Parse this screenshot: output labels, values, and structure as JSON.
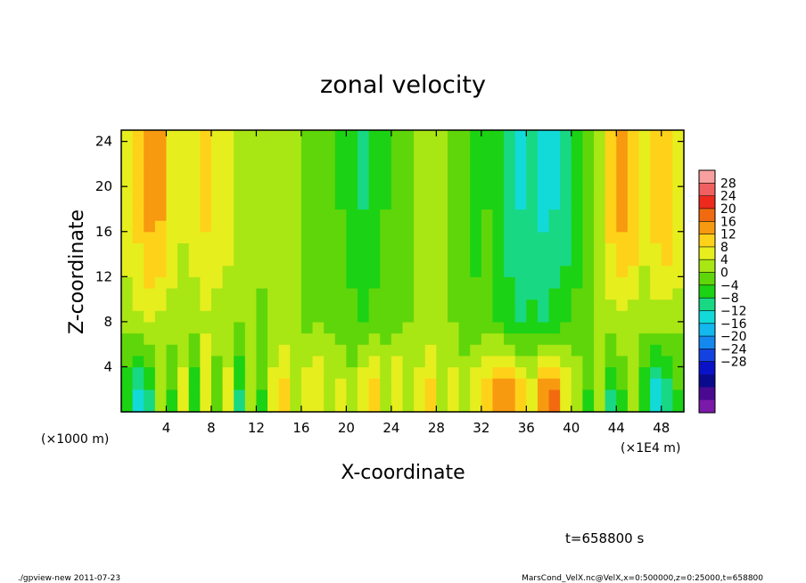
{
  "chart_data": {
    "type": "heatmap",
    "title": "zonal velocity",
    "xlabel": "X-coordinate",
    "ylabel": "Z-coordinate",
    "x_unit_label": "(×1E4 m)",
    "y_unit_label": "(×1000 m)",
    "x_range": [
      0,
      50
    ],
    "y_range": [
      0,
      25
    ],
    "x_ticks": [
      4,
      8,
      12,
      16,
      20,
      24,
      28,
      32,
      36,
      40,
      44,
      48
    ],
    "y_ticks": [
      4,
      8,
      12,
      16,
      20,
      24
    ],
    "colorbar": {
      "labels": [
        "28",
        "24",
        "20",
        "16",
        "12",
        "8",
        "4",
        "0",
        "−4",
        "−8",
        "−12",
        "−16",
        "−20",
        "−24",
        "−28"
      ],
      "colors": [
        "#f8a0a0",
        "#f06060",
        "#ee2a1c",
        "#f26a10",
        "#f79a10",
        "#ffd21a",
        "#e6ee1e",
        "#a8e614",
        "#5fd60a",
        "#1cd214",
        "#18d884",
        "#12dad8",
        "#12b8ee",
        "#1488ee",
        "#1442e0",
        "#0a12c8",
        "#0a0a8c",
        "#4a0a90",
        "#7a1aa8"
      ]
    },
    "columns": [
      {
        "x": 0.5,
        "top": 6,
        "mid": 2,
        "bot": -6
      },
      {
        "x": 1.5,
        "top": 10,
        "mid": 3,
        "bot": -12
      },
      {
        "x": 2.5,
        "top": 14,
        "mid": 4,
        "bot": -8
      },
      {
        "x": 3.5,
        "top": 13,
        "mid": 3,
        "bot": 2
      },
      {
        "x": 4.5,
        "top": 8,
        "mid": 2,
        "bot": -4
      },
      {
        "x": 5.5,
        "top": 5,
        "mid": 1,
        "bot": 6
      },
      {
        "x": 6.5,
        "top": 6,
        "mid": 2,
        "bot": -6
      },
      {
        "x": 7.5,
        "top": 9,
        "mid": 3,
        "bot": 8
      },
      {
        "x": 8.5,
        "top": 8,
        "mid": 2,
        "bot": -2
      },
      {
        "x": 9.5,
        "top": 6,
        "mid": 1,
        "bot": 6
      },
      {
        "x": 10.5,
        "top": 4,
        "mid": 0,
        "bot": -8
      },
      {
        "x": 11.5,
        "top": 3,
        "mid": 0,
        "bot": 4
      },
      {
        "x": 12.5,
        "top": 2,
        "mid": -1,
        "bot": -4
      },
      {
        "x": 13.5,
        "top": 1,
        "mid": 0,
        "bot": 6
      },
      {
        "x": 14.5,
        "top": 2,
        "mid": 1,
        "bot": 10
      },
      {
        "x": 15.5,
        "top": 1,
        "mid": 0,
        "bot": 2
      },
      {
        "x": 16.5,
        "top": -1,
        "mid": -1,
        "bot": 6
      },
      {
        "x": 17.5,
        "top": -2,
        "mid": 0,
        "bot": 8
      },
      {
        "x": 18.5,
        "top": -2,
        "mid": -1,
        "bot": 4
      },
      {
        "x": 19.5,
        "top": -4,
        "mid": -2,
        "bot": 6
      },
      {
        "x": 20.5,
        "top": -6,
        "mid": -3,
        "bot": 2
      },
      {
        "x": 21.5,
        "top": -8,
        "mid": -4,
        "bot": 8
      },
      {
        "x": 22.5,
        "top": -6,
        "mid": -3,
        "bot": 10
      },
      {
        "x": 23.5,
        "top": -4,
        "mid": -2,
        "bot": 4
      },
      {
        "x": 24.5,
        "top": -3,
        "mid": -1,
        "bot": 8
      },
      {
        "x": 25.5,
        "top": -2,
        "mid": 0,
        "bot": 2
      },
      {
        "x": 26.5,
        "top": 1,
        "mid": 1,
        "bot": 6
      },
      {
        "x": 27.5,
        "top": 3,
        "mid": 2,
        "bot": 10
      },
      {
        "x": 28.5,
        "top": 2,
        "mid": 1,
        "bot": 4
      },
      {
        "x": 29.5,
        "top": -1,
        "mid": 0,
        "bot": 6
      },
      {
        "x": 30.5,
        "top": -3,
        "mid": -2,
        "bot": 2
      },
      {
        "x": 31.5,
        "top": -5,
        "mid": -3,
        "bot": 8
      },
      {
        "x": 32.5,
        "top": -4,
        "mid": -2,
        "bot": 10
      },
      {
        "x": 33.5,
        "top": -7,
        "mid": -4,
        "bot": 14
      },
      {
        "x": 34.5,
        "top": -10,
        "mid": -6,
        "bot": 16
      },
      {
        "x": 35.5,
        "top": -12,
        "mid": -8,
        "bot": 10
      },
      {
        "x": 36.5,
        "top": -11,
        "mid": -7,
        "bot": 6
      },
      {
        "x": 37.5,
        "top": -13,
        "mid": -8,
        "bot": 14
      },
      {
        "x": 38.5,
        "top": -12,
        "mid": -6,
        "bot": 18
      },
      {
        "x": 39.5,
        "top": -10,
        "mid": -5,
        "bot": 8
      },
      {
        "x": 40.5,
        "top": -6,
        "mid": -3,
        "bot": 4
      },
      {
        "x": 41.5,
        "top": -2,
        "mid": 0,
        "bot": -4
      },
      {
        "x": 42.5,
        "top": 4,
        "mid": 1,
        "bot": 2
      },
      {
        "x": 43.5,
        "top": 10,
        "mid": 2,
        "bot": -8
      },
      {
        "x": 44.5,
        "top": 14,
        "mid": 3,
        "bot": -4
      },
      {
        "x": 45.5,
        "top": 12,
        "mid": 2,
        "bot": 4
      },
      {
        "x": 46.5,
        "top": 6,
        "mid": 1,
        "bot": -6
      },
      {
        "x": 47.5,
        "top": 10,
        "mid": 2,
        "bot": -14
      },
      {
        "x": 48.5,
        "top": 12,
        "mid": 2,
        "bot": -10
      },
      {
        "x": 49.5,
        "top": 8,
        "mid": 1,
        "bot": -4
      }
    ]
  },
  "annotations": {
    "time": "t=658800 s",
    "program": "./gpview-new  2011-07-23",
    "source": "MarsCond_VelX.nc@VelX,x=0:500000,z=0:25000,t=658800"
  }
}
